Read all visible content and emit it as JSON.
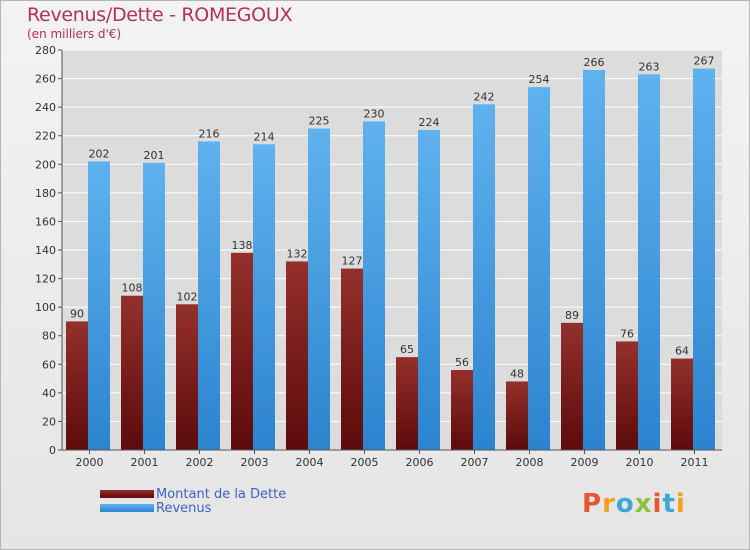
{
  "header": {
    "title": "Revenus/Dette - ROMEGOUX",
    "subtitle": "(en milliers d'€)"
  },
  "legend": {
    "debt_label": "Montant de la Dette",
    "revenue_label": "Revenus"
  },
  "logo": {
    "letters": [
      "P",
      "r",
      "o",
      "x",
      "i",
      "t",
      "i"
    ],
    "colors": [
      "#e8552f",
      "#f3a01f",
      "#3aa9d8",
      "#8ac240",
      "#e8552f",
      "#3aa9d8",
      "#f3a01f"
    ]
  },
  "colors": {
    "debt": "#7e1f1c",
    "revenue": "#4aa3e6",
    "title": "#b5305a",
    "legend_text": "#3b63c8"
  },
  "chart_data": {
    "type": "bar",
    "title": "Revenus/Dette - ROMEGOUX",
    "subtitle": "(en milliers d'€)",
    "categories": [
      "2000",
      "2001",
      "2002",
      "2003",
      "2004",
      "2005",
      "2006",
      "2007",
      "2008",
      "2009",
      "2010",
      "2011"
    ],
    "series": [
      {
        "name": "Montant de la Dette",
        "values": [
          90,
          108,
          102,
          138,
          132,
          127,
          65,
          56,
          48,
          89,
          76,
          64
        ]
      },
      {
        "name": "Revenus",
        "values": [
          202,
          201,
          216,
          214,
          225,
          230,
          224,
          242,
          254,
          266,
          263,
          267
        ]
      }
    ],
    "ylim": [
      0,
      280
    ],
    "yticks": [
      0,
      20,
      40,
      60,
      80,
      100,
      120,
      140,
      160,
      180,
      200,
      220,
      240,
      260,
      280
    ],
    "grid": true,
    "legend_position": "bottom-left",
    "data_labels": true
  }
}
